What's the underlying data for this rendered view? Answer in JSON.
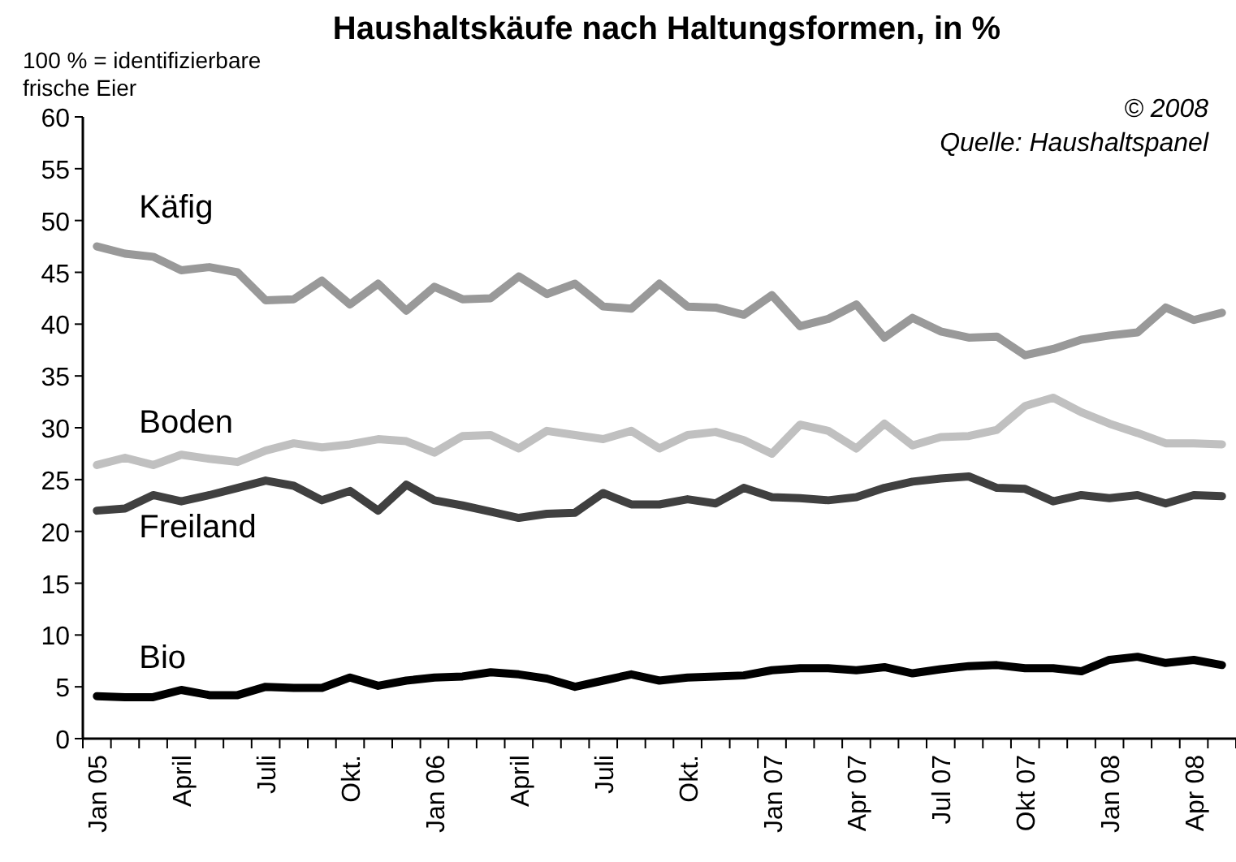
{
  "chart_data": {
    "type": "line",
    "title": "Haushaltskäufe nach Haltungsformen, in %",
    "annotations": [
      "100 % = identifizierbare frische Eier",
      "© 2008",
      "Quelle: Haushaltspanel"
    ],
    "categories": [
      "Jan 05",
      null,
      null,
      "April",
      null,
      null,
      "Juli",
      null,
      null,
      "Okt.",
      null,
      null,
      "Jan 06",
      null,
      null,
      "April",
      null,
      null,
      "Juli",
      null,
      null,
      "Okt.",
      null,
      null,
      "Jan 07",
      null,
      null,
      "Apr 07",
      null,
      null,
      "Jul 07",
      null,
      null,
      "Okt 07",
      null,
      null,
      "Jan 08",
      null,
      null,
      "Apr 08",
      null
    ],
    "ylim": [
      0,
      60
    ],
    "yticks": [
      0,
      5,
      10,
      15,
      20,
      25,
      30,
      35,
      40,
      45,
      50,
      55,
      60
    ],
    "series": [
      {
        "name": "Käfig",
        "color": "#999999",
        "values": [
          47.5,
          46.8,
          46.5,
          45.2,
          45.5,
          45.0,
          42.3,
          42.4,
          44.2,
          41.9,
          43.9,
          41.3,
          43.6,
          42.4,
          42.5,
          44.6,
          42.9,
          43.9,
          41.7,
          41.5,
          43.9,
          41.7,
          41.6,
          40.9,
          42.8,
          39.8,
          40.5,
          41.9,
          38.7,
          40.6,
          39.3,
          38.7,
          38.8,
          37.0,
          37.6,
          38.5,
          38.9,
          39.2,
          41.6,
          40.4,
          41.1
        ]
      },
      {
        "name": "Boden",
        "color": "#c0c0c0",
        "values": [
          26.4,
          27.1,
          26.4,
          27.4,
          27.0,
          26.7,
          27.8,
          28.5,
          28.1,
          28.4,
          28.9,
          28.7,
          27.6,
          29.2,
          29.3,
          28.0,
          29.7,
          29.3,
          28.9,
          29.7,
          28.0,
          29.3,
          29.6,
          28.8,
          27.5,
          30.3,
          29.7,
          28.0,
          30.4,
          28.3,
          29.1,
          29.2,
          29.8,
          32.1,
          32.9,
          31.5,
          30.4,
          29.5,
          28.5,
          28.5,
          28.4
        ]
      },
      {
        "name": "Freiland",
        "color": "#404040",
        "values": [
          22.0,
          22.2,
          23.5,
          22.9,
          23.5,
          24.2,
          24.9,
          24.4,
          23.0,
          23.9,
          22.0,
          24.5,
          23.0,
          22.5,
          21.9,
          21.3,
          21.7,
          21.8,
          23.7,
          22.6,
          22.6,
          23.1,
          22.7,
          24.2,
          23.3,
          23.2,
          23.0,
          23.3,
          24.2,
          24.8,
          25.1,
          25.3,
          24.2,
          24.1,
          22.9,
          23.5,
          23.2,
          23.5,
          22.7,
          23.5,
          23.4
        ]
      },
      {
        "name": "Bio",
        "color": "#000000",
        "values": [
          4.1,
          4.0,
          4.0,
          4.7,
          4.2,
          4.2,
          5.0,
          4.9,
          4.9,
          5.9,
          5.1,
          5.6,
          5.9,
          6.0,
          6.4,
          6.2,
          5.8,
          5.0,
          5.6,
          6.2,
          5.6,
          5.9,
          6.0,
          6.1,
          6.6,
          6.8,
          6.8,
          6.6,
          6.9,
          6.3,
          6.7,
          7.0,
          7.1,
          6.8,
          6.8,
          6.5,
          7.6,
          7.9,
          7.3,
          7.6,
          7.1
        ]
      }
    ]
  }
}
